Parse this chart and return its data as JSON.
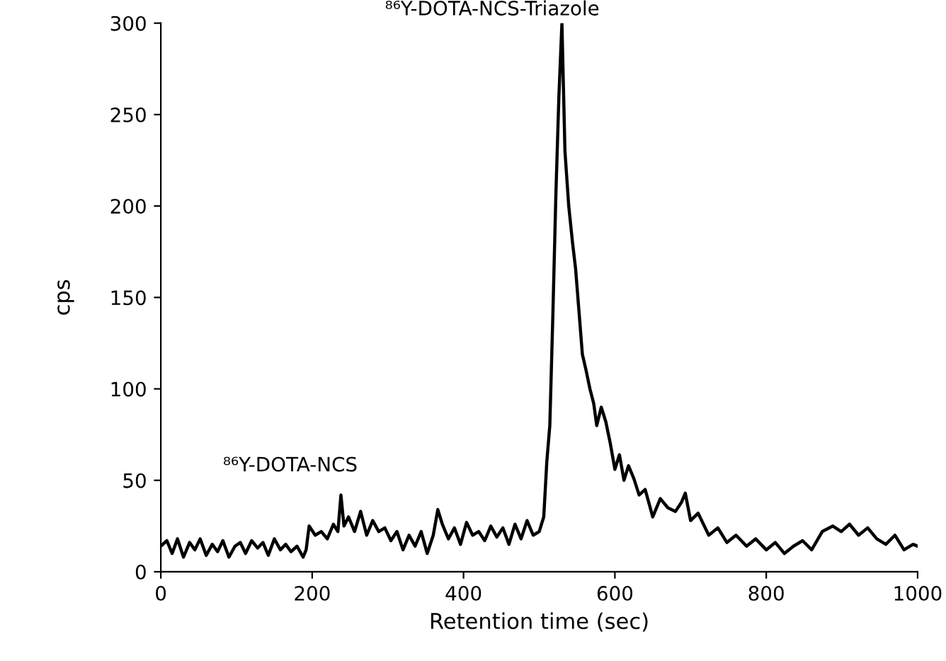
{
  "chart_data": {
    "type": "line",
    "xlabel": "Retention time (sec)",
    "ylabel": "cps",
    "xlim": [
      0,
      1000
    ],
    "xticks": [
      0,
      200,
      400,
      600,
      800,
      1000
    ],
    "ylim": [
      0,
      300
    ],
    "yticks": [
      0,
      50,
      100,
      150,
      200,
      250,
      300
    ],
    "grid": false,
    "legend": false,
    "annotations": [
      {
        "text": "⁸⁶Y-DOTA-NCS",
        "x": 238,
        "y": 42
      },
      {
        "text": "⁸⁶Y-DOTA-NCS-Triazole",
        "x": 530,
        "y": 300
      }
    ],
    "series": [
      {
        "color": "#000000",
        "x": [
          0,
          8,
          15,
          22,
          30,
          38,
          45,
          52,
          60,
          68,
          75,
          82,
          90,
          98,
          105,
          112,
          120,
          128,
          135,
          142,
          150,
          158,
          165,
          172,
          180,
          188,
          192,
          196,
          204,
          212,
          220,
          228,
          234,
          238,
          242,
          248,
          256,
          264,
          272,
          280,
          288,
          296,
          304,
          312,
          320,
          328,
          336,
          344,
          352,
          360,
          366,
          372,
          380,
          388,
          396,
          404,
          412,
          420,
          428,
          436,
          444,
          452,
          460,
          468,
          476,
          484,
          492,
          500,
          506,
          510,
          514,
          518,
          522,
          526,
          530,
          534,
          539,
          544,
          548,
          553,
          557,
          562,
          567,
          572,
          576,
          582,
          588,
          594,
          600,
          606,
          612,
          618,
          625,
          632,
          640,
          650,
          660,
          670,
          680,
          688,
          693,
          700,
          710,
          724,
          736,
          748,
          760,
          774,
          786,
          800,
          812,
          824,
          836,
          848,
          860,
          874,
          888,
          899,
          910,
          922,
          934,
          946,
          958,
          970,
          982,
          994,
          1000
        ],
        "values": [
          14,
          17,
          10,
          18,
          8,
          16,
          12,
          18,
          9,
          15,
          11,
          17,
          8,
          14,
          16,
          10,
          17,
          13,
          16,
          9,
          18,
          12,
          15,
          11,
          14,
          8,
          12,
          25,
          20,
          22,
          18,
          26,
          22,
          42,
          25,
          30,
          22,
          33,
          20,
          28,
          22,
          24,
          17,
          22,
          12,
          20,
          14,
          22,
          10,
          20,
          34,
          26,
          18,
          24,
          15,
          27,
          20,
          22,
          17,
          25,
          19,
          24,
          15,
          26,
          18,
          28,
          20,
          22,
          30,
          60,
          80,
          140,
          206,
          260,
          300,
          230,
          200,
          180,
          166,
          140,
          119,
          110,
          100,
          92,
          80,
          90,
          82,
          70,
          56,
          64,
          50,
          58,
          51,
          42,
          45,
          30,
          40,
          35,
          33,
          38,
          43,
          28,
          32,
          20,
          24,
          16,
          20,
          14,
          18,
          12,
          16,
          10,
          14,
          17,
          12,
          22,
          25,
          22,
          26,
          20,
          24,
          18,
          15,
          20,
          12,
          15,
          14
        ]
      }
    ]
  }
}
